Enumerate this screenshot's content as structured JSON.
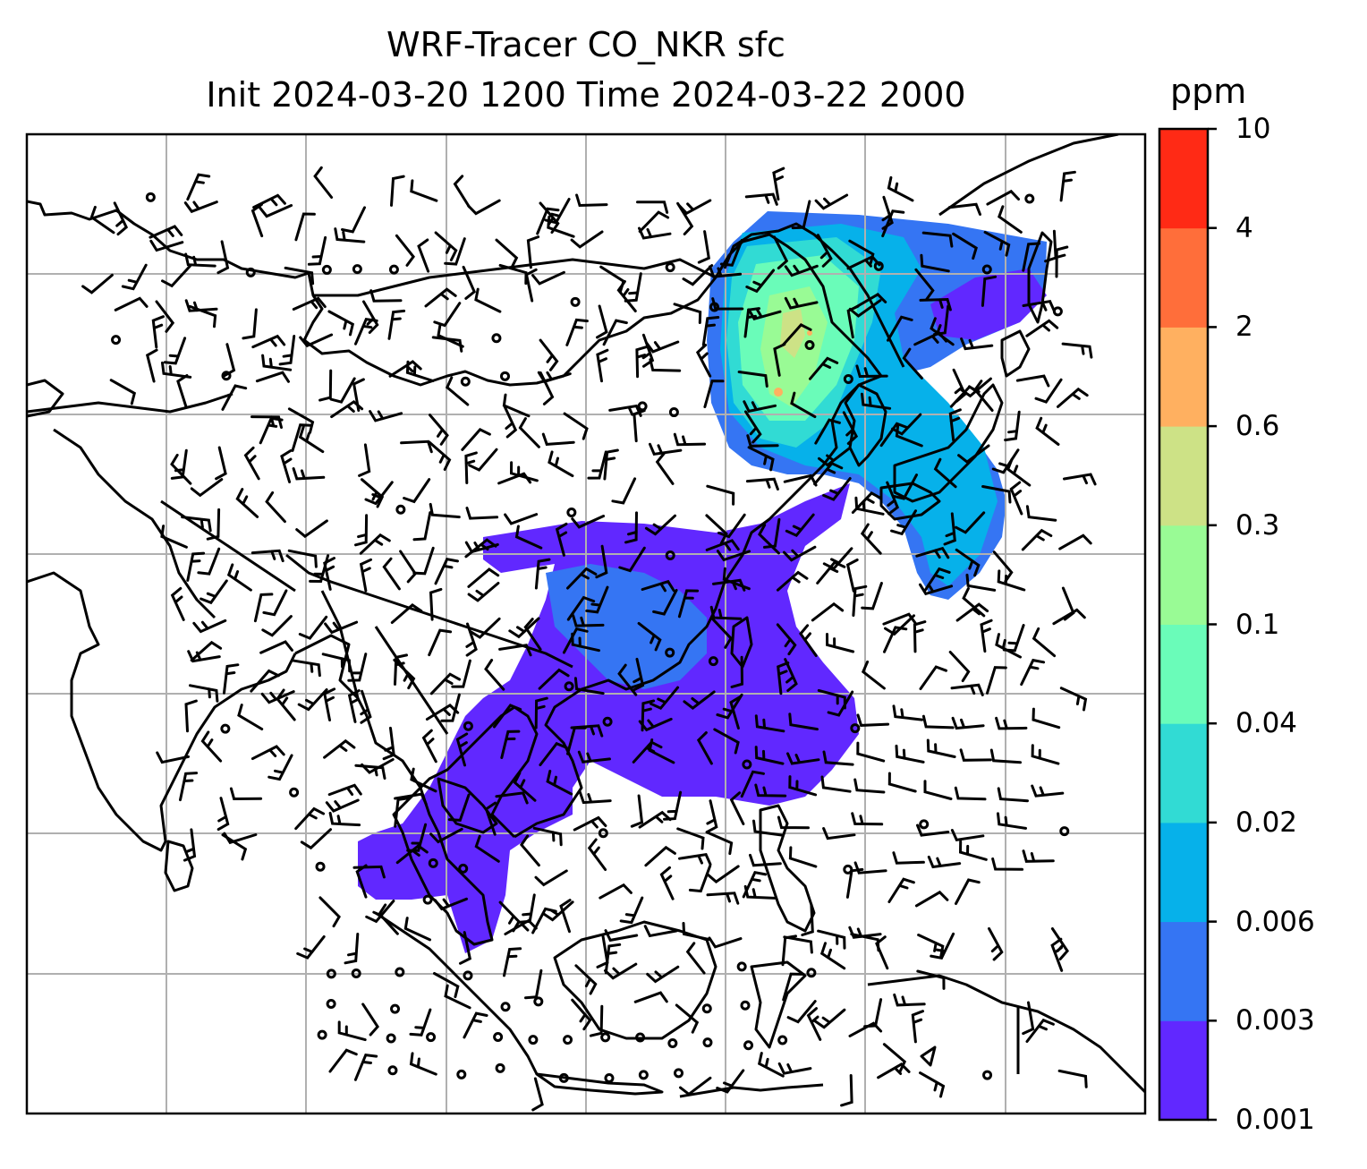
{
  "title": {
    "line1": "WRF-Tracer CO_NKR sfc",
    "line2": "Init 2024-03-20 1200 Time 2024-03-22 2000"
  },
  "colorbar": {
    "unit": "ppm",
    "ticks": [
      "0.001",
      "0.003",
      "0.006",
      "0.02",
      "0.04",
      "0.1",
      "0.3",
      "0.6",
      "2",
      "4",
      "10"
    ],
    "colors": [
      "#6128ff",
      "#3575f3",
      "#06b1ea",
      "#31dbd4",
      "#6afcb9",
      "#99fb95",
      "#cde286",
      "#ffb060",
      "#ff6e3a",
      "#ff2a15"
    ]
  },
  "map": {
    "gridlines": true,
    "wind_barbs": true,
    "tracer_plume": "CO_NKR"
  }
}
